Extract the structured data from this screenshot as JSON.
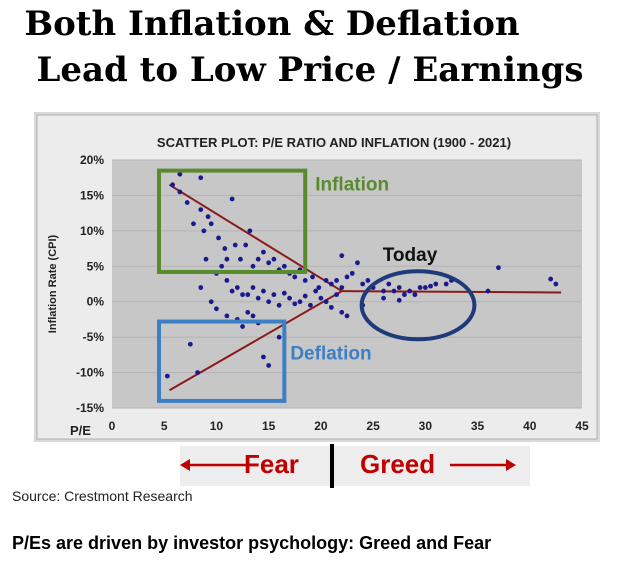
{
  "headline": {
    "line1": "Both Inflation & Deflation",
    "line2": "Lead to Low Price / Earnings"
  },
  "chart_data": {
    "type": "scatter",
    "title": "SCATTER PLOT: P/E RATIO AND INFLATION (1900 - 2021)",
    "xlabel": "P/E",
    "ylabel": "Inflation Rate (CPI)",
    "xlim": [
      0,
      45
    ],
    "ylim": [
      -15,
      20
    ],
    "xticks": [
      "0",
      "5",
      "10",
      "15",
      "20",
      "25",
      "30",
      "35",
      "40",
      "45"
    ],
    "yticks": [
      "20%",
      "15%",
      "10%",
      "5%",
      "0%",
      "-5%",
      "-10%",
      "-15%"
    ],
    "point_color": "#1a1a8c",
    "points": [
      [
        5.8,
        16.5
      ],
      [
        6.5,
        15.5
      ],
      [
        6.5,
        18
      ],
      [
        7.2,
        14
      ],
      [
        7.8,
        11
      ],
      [
        8.5,
        17.5
      ],
      [
        8.5,
        13
      ],
      [
        9.2,
        12
      ],
      [
        8.8,
        10
      ],
      [
        9.5,
        11
      ],
      [
        10.2,
        9
      ],
      [
        10.8,
        7.5
      ],
      [
        11.5,
        14.5
      ],
      [
        11.8,
        8
      ],
      [
        12.3,
        6
      ],
      [
        12.8,
        8
      ],
      [
        13.2,
        10
      ],
      [
        13.5,
        5
      ],
      [
        14,
        6
      ],
      [
        14.5,
        7
      ],
      [
        15,
        5.5
      ],
      [
        15.5,
        6
      ],
      [
        16,
        4.5
      ],
      [
        16.5,
        5
      ],
      [
        17,
        4
      ],
      [
        17.5,
        3.5
      ],
      [
        18,
        4.5
      ],
      [
        18.5,
        3
      ],
      [
        19.2,
        3.5
      ],
      [
        19.8,
        2
      ],
      [
        20.5,
        3
      ],
      [
        21,
        2.5
      ],
      [
        21.5,
        3
      ],
      [
        22,
        2
      ],
      [
        22.5,
        3.5
      ],
      [
        23,
        4
      ],
      [
        24,
        2.5
      ],
      [
        25,
        2
      ],
      [
        26,
        1.5
      ],
      [
        26.5,
        2.5
      ],
      [
        27,
        1.5
      ],
      [
        27.5,
        2
      ],
      [
        28,
        1
      ],
      [
        28.5,
        1.5
      ],
      [
        29,
        1
      ],
      [
        29.5,
        2
      ],
      [
        30,
        2
      ],
      [
        31,
        2.5
      ],
      [
        32,
        2.5
      ],
      [
        32.5,
        3
      ],
      [
        36,
        1.5
      ],
      [
        37,
        4.8
      ],
      [
        42,
        3.2
      ],
      [
        42.5,
        2.5
      ],
      [
        22,
        6.5
      ],
      [
        23.5,
        5.5
      ],
      [
        24.5,
        3
      ],
      [
        10,
        4
      ],
      [
        11,
        3
      ],
      [
        11.5,
        1.5
      ],
      [
        12,
        2
      ],
      [
        12.5,
        1
      ],
      [
        13,
        1
      ],
      [
        13.5,
        2
      ],
      [
        14,
        0.5
      ],
      [
        14.5,
        1.5
      ],
      [
        15,
        0
      ],
      [
        15.5,
        1
      ],
      [
        16,
        -0.5
      ],
      [
        16.5,
        1.2
      ],
      [
        17,
        0.5
      ],
      [
        17.5,
        -0.3
      ],
      [
        18,
        0
      ],
      [
        18.5,
        0.8
      ],
      [
        19,
        -0.5
      ],
      [
        19.5,
        1.5
      ],
      [
        20,
        0.5
      ],
      [
        20.5,
        0
      ],
      [
        21,
        -0.8
      ],
      [
        21.5,
        1
      ],
      [
        8.5,
        2
      ],
      [
        9.5,
        0
      ],
      [
        10,
        -1
      ],
      [
        11,
        -2
      ],
      [
        12,
        -2.5
      ],
      [
        12.5,
        -3.5
      ],
      [
        13,
        -1.5
      ],
      [
        13.5,
        -2
      ],
      [
        14,
        -3
      ],
      [
        7.5,
        -6
      ],
      [
        8.2,
        -10
      ],
      [
        5.3,
        -10.5
      ],
      [
        14.5,
        -7.8
      ],
      [
        15,
        -9
      ],
      [
        16,
        -5
      ],
      [
        22,
        -1.5
      ],
      [
        22.5,
        -2
      ],
      [
        26,
        0.5
      ],
      [
        27.5,
        0.2
      ],
      [
        30.5,
        2.2
      ],
      [
        24,
        -0.5
      ],
      [
        10.5,
        5
      ],
      [
        11,
        6
      ],
      [
        9,
        6
      ]
    ],
    "trend_lines": [
      {
        "from": [
          5.5,
          16.5
        ],
        "to": [
          22,
          1.5
        ]
      },
      {
        "from": [
          5.5,
          -12.5
        ],
        "to": [
          22,
          1.5
        ]
      },
      {
        "from": [
          22,
          1.5
        ],
        "to": [
          43,
          1.3
        ]
      }
    ],
    "annotations": [
      {
        "id": "inflation",
        "text": "Inflation",
        "color": "#5a8a2e",
        "box_x": [
          4.5,
          18.5
        ],
        "box_y": [
          4.2,
          18.5
        ]
      },
      {
        "id": "deflation",
        "text": "Deflation",
        "color": "#3b7fc4",
        "box_x": [
          4.5,
          16.5
        ],
        "box_y": [
          -14,
          -2.8
        ]
      },
      {
        "id": "today",
        "text": "Today",
        "color": "#1f3a7a",
        "circle_center": [
          29.3,
          -0.5
        ],
        "circle_radius": [
          5.4,
          4.8
        ]
      }
    ]
  },
  "fear_greed": {
    "fear": "Fear",
    "greed": "Greed"
  },
  "source": "Source: Crestmont Research",
  "footer": "P/Es are driven by investor psychology: Greed and Fear"
}
